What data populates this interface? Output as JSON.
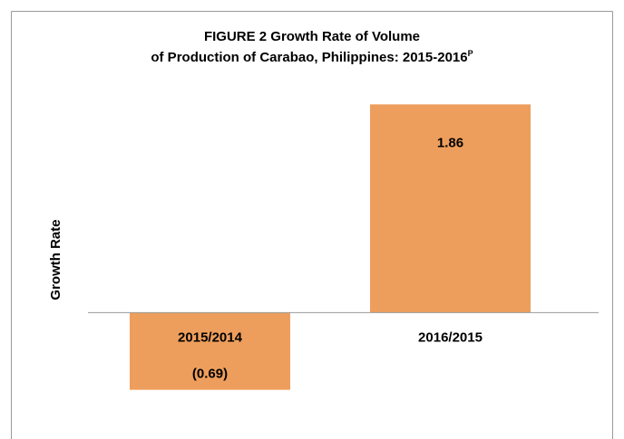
{
  "chart_data": {
    "type": "bar",
    "title": [
      "FIGURE 2  Growth Rate of Volume",
      "of Production of Carabao, Philippines:  2015-2016"
    ],
    "title_superscript": "P",
    "y_label": "Growth Rate",
    "categories": [
      "2015/2014",
      "2016/2015"
    ],
    "values": [
      -0.69,
      1.86
    ],
    "value_labels": [
      "(0.69)",
      "1.86"
    ],
    "color": "#ee9e5c",
    "ylim": [
      -1,
      2
    ]
  }
}
